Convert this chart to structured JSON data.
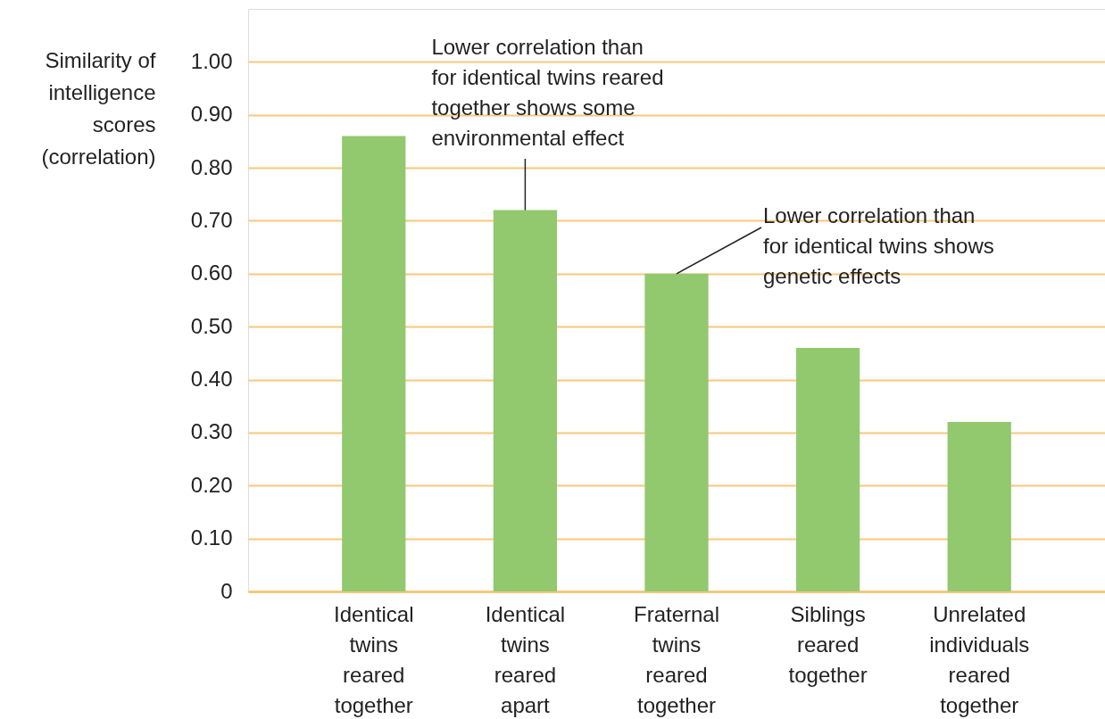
{
  "chart_data": {
    "type": "bar",
    "ylabel": "Similarity of\nintelligence\nscores\n(correlation)",
    "categories": [
      "Identical twins reared together",
      "Identical twins reared apart",
      "Fraternal twins reared together",
      "Siblings reared together",
      "Unrelated individuals reared together"
    ],
    "values": [
      0.86,
      0.72,
      0.6,
      0.46,
      0.32
    ],
    "color": "#92c86e",
    "ylim": [
      0,
      1.1
    ],
    "yticks": [
      0,
      {
        "value": 0.1,
        "label": "0.10"
      },
      {
        "value": 0.2,
        "label": "0.20"
      },
      {
        "value": 0.3,
        "label": "0.30"
      },
      {
        "value": 0.4,
        "label": "0.40"
      },
      {
        "value": 0.5,
        "label": "0.50"
      },
      {
        "value": 0.6,
        "label": "0.60"
      },
      {
        "value": 0.7,
        "label": "0.70"
      },
      {
        "value": 0.8,
        "label": "0.80"
      },
      {
        "value": 0.9,
        "label": "0.90"
      },
      {
        "value": 1.0,
        "label": "1.00"
      }
    ],
    "grid": "y",
    "annotations": [
      {
        "text": "Lower correlation than\nfor identical twins reared\ntogether shows some\nenvironmental effect",
        "x": "Identical twins reared apart",
        "y": 0.72
      },
      {
        "text": "Lower correlation than\nfor identical twins shows\ngenetic effects",
        "x": "Fraternal twins reared together",
        "y": 0.6
      }
    ]
  }
}
